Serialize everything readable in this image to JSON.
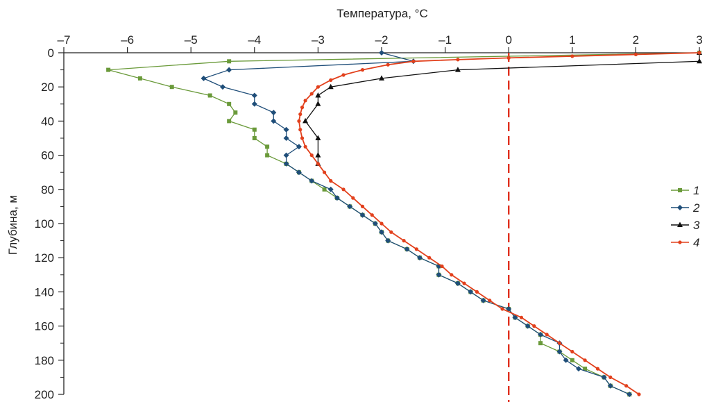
{
  "chart_data": {
    "type": "line",
    "xlabel": "Температура, °C",
    "ylabel": "Глубина, м",
    "x_axis_position": "top",
    "y_axis_inverted": true,
    "xlim": [
      -7,
      3
    ],
    "ylim": [
      0,
      200
    ],
    "x_ticks": [
      -7,
      -6,
      -5,
      -4,
      -3,
      -2,
      -1,
      0,
      1,
      2,
      3
    ],
    "x_tick_labels": [
      "–7",
      "–6",
      "–5",
      "–4",
      "–3",
      "–2",
      "–1",
      "0",
      "1",
      "2",
      "3"
    ],
    "y_ticks": [
      0,
      20,
      40,
      60,
      80,
      100,
      120,
      140,
      160,
      180,
      200
    ],
    "y_tick_labels": [
      "0",
      "20",
      "40",
      "60",
      "80",
      "100",
      "120",
      "140",
      "160",
      "180",
      "200"
    ],
    "reference_line": {
      "x": 0,
      "color": "#e0301e",
      "style": "dashed"
    },
    "grid": false,
    "legend_position": "right",
    "series": [
      {
        "name": "1",
        "color": "#6a9a3a",
        "marker": "square",
        "points": [
          [
            3.0,
            0
          ],
          [
            -4.4,
            5
          ],
          [
            -6.3,
            10
          ],
          [
            -5.8,
            15
          ],
          [
            -5.3,
            20
          ],
          [
            -4.7,
            25
          ],
          [
            -4.4,
            30
          ],
          [
            -4.3,
            35
          ],
          [
            -4.4,
            40
          ],
          [
            -4.0,
            45
          ],
          [
            -4.0,
            50
          ],
          [
            -3.8,
            55
          ],
          [
            -3.8,
            60
          ],
          [
            -3.5,
            65
          ],
          [
            -3.3,
            70
          ],
          [
            -3.1,
            75
          ],
          [
            -2.9,
            80
          ],
          [
            -2.7,
            85
          ],
          [
            -2.5,
            90
          ],
          [
            -2.3,
            95
          ],
          [
            -2.1,
            100
          ],
          [
            -2.0,
            105
          ],
          [
            -1.9,
            110
          ],
          [
            -1.6,
            115
          ],
          [
            -1.4,
            120
          ],
          [
            -1.1,
            125
          ],
          [
            -1.1,
            130
          ],
          [
            -0.8,
            135
          ],
          [
            -0.6,
            140
          ],
          [
            -0.4,
            145
          ],
          [
            0.0,
            150
          ],
          [
            0.1,
            155
          ],
          [
            0.3,
            160
          ],
          [
            0.5,
            165
          ],
          [
            0.5,
            170
          ],
          [
            0.8,
            175
          ],
          [
            1.0,
            180
          ],
          [
            1.2,
            185
          ],
          [
            1.5,
            190
          ],
          [
            1.6,
            195
          ],
          [
            1.9,
            200
          ]
        ]
      },
      {
        "name": "2",
        "color": "#1f4e79",
        "marker": "diamond",
        "points": [
          [
            -2.0,
            0
          ],
          [
            -1.5,
            5
          ],
          [
            -4.4,
            10
          ],
          [
            -4.8,
            15
          ],
          [
            -4.5,
            20
          ],
          [
            -4.0,
            25
          ],
          [
            -4.0,
            30
          ],
          [
            -3.7,
            35
          ],
          [
            -3.7,
            40
          ],
          [
            -3.5,
            45
          ],
          [
            -3.5,
            50
          ],
          [
            -3.3,
            55
          ],
          [
            -3.5,
            60
          ],
          [
            -3.5,
            65
          ],
          [
            -3.3,
            70
          ],
          [
            -3.1,
            75
          ],
          [
            -2.8,
            80
          ],
          [
            -2.7,
            85
          ],
          [
            -2.5,
            90
          ],
          [
            -2.3,
            95
          ],
          [
            -2.1,
            100
          ],
          [
            -2.0,
            105
          ],
          [
            -1.9,
            110
          ],
          [
            -1.6,
            115
          ],
          [
            -1.4,
            120
          ],
          [
            -1.1,
            125
          ],
          [
            -1.1,
            130
          ],
          [
            -0.8,
            135
          ],
          [
            -0.6,
            140
          ],
          [
            -0.4,
            145
          ],
          [
            0.0,
            150
          ],
          [
            0.1,
            155
          ],
          [
            0.3,
            160
          ],
          [
            0.5,
            165
          ],
          [
            0.8,
            170
          ],
          [
            0.8,
            175
          ],
          [
            0.9,
            180
          ],
          [
            1.1,
            185
          ],
          [
            1.5,
            190
          ],
          [
            1.6,
            195
          ],
          [
            1.9,
            200
          ]
        ]
      },
      {
        "name": "3",
        "color": "#111111",
        "marker": "triangle",
        "points": [
          [
            3.0,
            0
          ],
          [
            3.0,
            5
          ],
          [
            -0.8,
            10
          ],
          [
            -2.0,
            15
          ],
          [
            -2.8,
            20
          ],
          [
            -3.0,
            25
          ],
          [
            -3.0,
            30
          ],
          [
            -3.2,
            40
          ],
          [
            -3.0,
            50
          ],
          [
            -3.0,
            60
          ],
          [
            -3.0,
            65
          ]
        ]
      },
      {
        "name": "4",
        "color": "#e2401c",
        "marker": "dot",
        "points": [
          [
            3.0,
            0
          ],
          [
            2.0,
            1
          ],
          [
            1.0,
            2
          ],
          [
            0.0,
            3
          ],
          [
            -0.8,
            4
          ],
          [
            -1.5,
            5
          ],
          [
            -1.9,
            7
          ],
          [
            -2.3,
            10
          ],
          [
            -2.6,
            13
          ],
          [
            -2.8,
            16
          ],
          [
            -3.0,
            20
          ],
          [
            -3.1,
            24
          ],
          [
            -3.2,
            28
          ],
          [
            -3.25,
            32
          ],
          [
            -3.28,
            36
          ],
          [
            -3.3,
            40
          ],
          [
            -3.28,
            45
          ],
          [
            -3.25,
            50
          ],
          [
            -3.2,
            55
          ],
          [
            -3.1,
            60
          ],
          [
            -3.0,
            65
          ],
          [
            -2.9,
            70
          ],
          [
            -2.8,
            75
          ],
          [
            -2.6,
            80
          ],
          [
            -2.45,
            85
          ],
          [
            -2.3,
            90
          ],
          [
            -2.15,
            95
          ],
          [
            -2.0,
            100
          ],
          [
            -1.85,
            105
          ],
          [
            -1.65,
            110
          ],
          [
            -1.45,
            115
          ],
          [
            -1.25,
            120
          ],
          [
            -1.05,
            125
          ],
          [
            -0.9,
            130
          ],
          [
            -0.7,
            135
          ],
          [
            -0.5,
            140
          ],
          [
            -0.3,
            145
          ],
          [
            -0.1,
            150
          ],
          [
            0.2,
            155
          ],
          [
            0.4,
            160
          ],
          [
            0.6,
            165
          ],
          [
            0.8,
            170
          ],
          [
            1.0,
            175
          ],
          [
            1.2,
            180
          ],
          [
            1.4,
            185
          ],
          [
            1.6,
            190
          ],
          [
            1.85,
            195
          ],
          [
            2.05,
            200
          ]
        ]
      }
    ]
  }
}
